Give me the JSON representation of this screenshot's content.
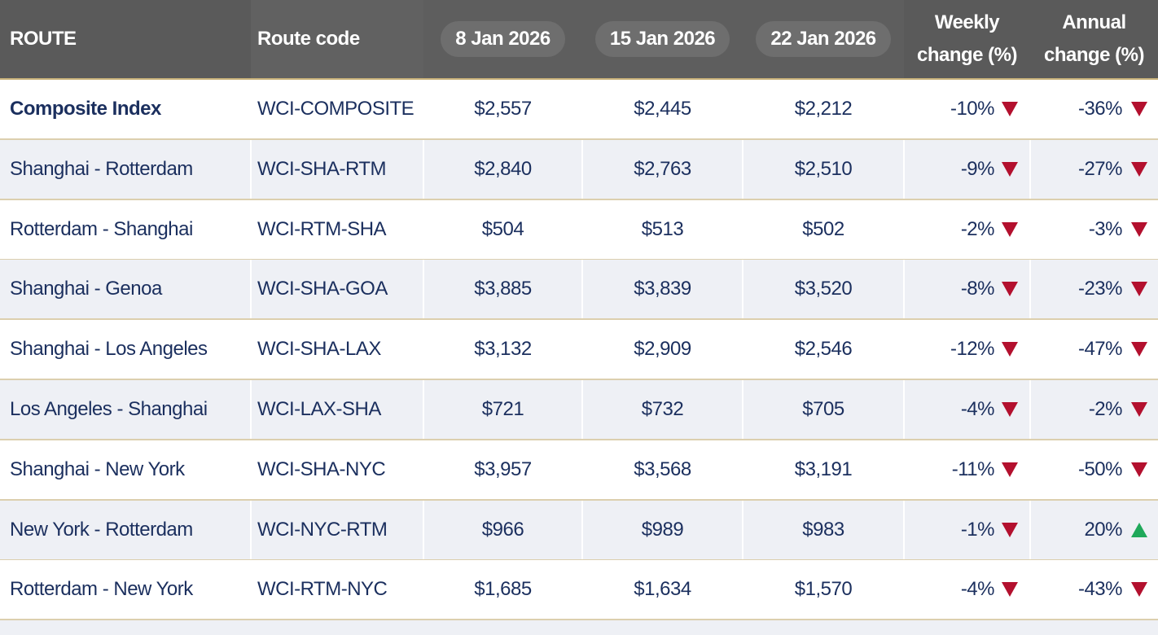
{
  "table": {
    "columns": [
      "ROUTE",
      "Route code",
      "8 Jan 2026",
      "15 Jan 2026",
      "22 Jan 2026",
      "Weekly change (%)",
      "Annual change (%)"
    ],
    "rows": [
      [
        "Composite Index",
        "WCI-COMPOSITE",
        "$2,557",
        "$2,445",
        "$2,212",
        "-10%",
        "-36%"
      ],
      [
        "Shanghai - Rotterdam",
        "WCI-SHA-RTM",
        "$2,840",
        "$2,763",
        "$2,510",
        "-9%",
        "-27%"
      ],
      [
        "Rotterdam - Shanghai",
        "WCI-RTM-SHA",
        "$504",
        "$513",
        "$502",
        "-2%",
        "-3%"
      ],
      [
        "Shanghai - Genoa",
        "WCI-SHA-GOA",
        "$3,885",
        "$3,839",
        "$3,520",
        "-8%",
        "-23%"
      ],
      [
        "Shanghai - Los Angeles",
        "WCI-SHA-LAX",
        "$3,132",
        "$2,909",
        "$2,546",
        "-12%",
        "-47%"
      ],
      [
        "Los Angeles - Shanghai",
        "WCI-LAX-SHA",
        "$721",
        "$732",
        "$705",
        "-4%",
        "-2%"
      ],
      [
        "Shanghai - New York",
        "WCI-SHA-NYC",
        "$3,957",
        "$3,568",
        "$3,191",
        "-11%",
        "-50%"
      ],
      [
        "New York - Rotterdam",
        "WCI-NYC-RTM",
        "$966",
        "$989",
        "$983",
        "-1%",
        "20%"
      ],
      [
        "Rotterdam - New York",
        "WCI-RTM-NYC",
        "$1,685",
        "$1,634",
        "$1,570",
        "-4%",
        "-43%"
      ]
    ]
  }
}
